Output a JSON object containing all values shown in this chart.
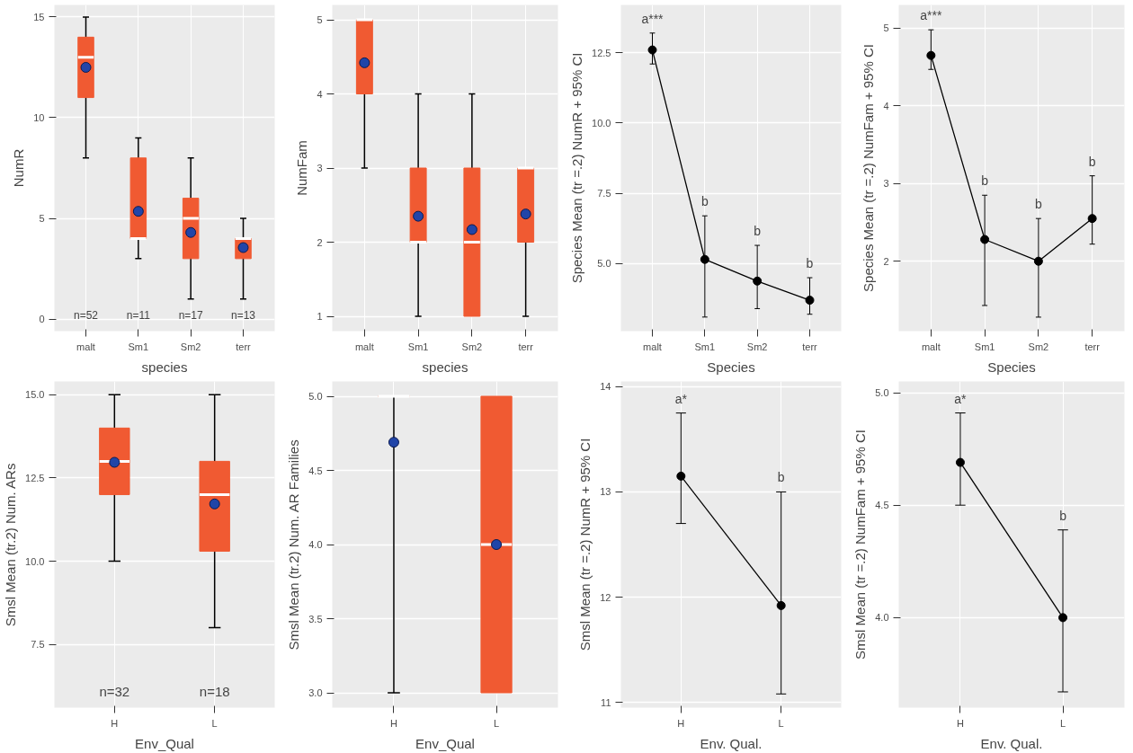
{
  "chart_data": [
    {
      "type": "box",
      "xlabel": "species",
      "ylabel": "NumR",
      "categories": [
        "malt",
        "Sm1",
        "Sm2",
        "terr"
      ],
      "ylim": [
        -0.6,
        15.6
      ],
      "yticks": [
        0,
        5,
        10,
        15
      ],
      "grid": true,
      "series": [
        {
          "color": "#f05a32",
          "boxes": [
            {
              "low": 8,
              "q1": 11,
              "median": 13,
              "q3": 14,
              "high": 15,
              "mean": 12.5
            },
            {
              "low": 3,
              "q1": 4,
              "median": 4,
              "q3": 8,
              "high": 9,
              "mean": 5.35
            },
            {
              "low": 1,
              "q1": 3,
              "median": 5,
              "q3": 6,
              "high": 8,
              "mean": 4.3
            },
            {
              "low": 1,
              "q1": 3,
              "median": 4,
              "q3": 4,
              "high": 5,
              "mean": 3.55
            }
          ]
        }
      ],
      "annotations": [
        "n=52",
        "n=11",
        "n=17",
        "n=13"
      ]
    },
    {
      "type": "box",
      "xlabel": "species",
      "ylabel": "NumFam",
      "categories": [
        "malt",
        "Sm1",
        "Sm2",
        "terr"
      ],
      "ylim": [
        0.8,
        5.2
      ],
      "yticks": [
        1,
        2,
        3,
        4,
        5
      ],
      "grid": true,
      "series": [
        {
          "color": "#f05a32",
          "boxes": [
            {
              "low": 3,
              "q1": 4,
              "median": 5,
              "q3": 5,
              "high": 5,
              "mean": 4.42
            },
            {
              "low": 1,
              "q1": 2,
              "median": 2,
              "q3": 3,
              "high": 4,
              "mean": 2.35
            },
            {
              "low": 1,
              "q1": 1,
              "median": 2,
              "q3": 3,
              "high": 4,
              "mean": 2.17
            },
            {
              "low": 1,
              "q1": 2,
              "median": 3,
              "q3": 3,
              "high": 3,
              "mean": 2.38
            }
          ]
        }
      ]
    },
    {
      "type": "line",
      "xlabel": "Species",
      "ylabel": "Species Mean (tr =.2) NumR + 95% CI",
      "categories": [
        "malt",
        "Sm1",
        "Sm2",
        "terr"
      ],
      "ylim": [
        2.6,
        14.2
      ],
      "yticks": [
        {
          "value": 5,
          "label": "5.0"
        },
        {
          "value": 7.5,
          "label": "7.5"
        },
        {
          "value": 10,
          "label": "10.0"
        },
        {
          "value": 12.5,
          "label": "12.5"
        }
      ],
      "grid": true,
      "marker": "circle",
      "series": [
        {
          "color": "#000000",
          "values": [
            12.6,
            5.15,
            4.38,
            3.7
          ],
          "errors": [
            [
              12.1,
              13.2
            ],
            [
              3.1,
              6.7
            ],
            [
              3.4,
              5.65
            ],
            [
              3.2,
              4.5
            ]
          ]
        }
      ],
      "annotations": [
        {
          "text": "a***",
          "x": "malt",
          "y": 13.2
        },
        {
          "text": "b",
          "x": "Sm1",
          "y": 6.7
        },
        {
          "text": "b",
          "x": "Sm2",
          "y": 5.65
        },
        {
          "text": "b",
          "x": "terr",
          "y": 4.5
        }
      ]
    },
    {
      "type": "line",
      "xlabel": "Species",
      "ylabel": "Species Mean (tr =.2) NumFam + 95% CI",
      "categories": [
        "malt",
        "Sm1",
        "Sm2",
        "terr"
      ],
      "ylim": [
        1.1,
        5.3
      ],
      "yticks": [
        2,
        3,
        4,
        5
      ],
      "grid": true,
      "marker": "circle",
      "series": [
        {
          "color": "#000000",
          "values": [
            4.65,
            2.28,
            2.0,
            2.55
          ],
          "errors": [
            [
              4.47,
              4.98
            ],
            [
              1.43,
              2.85
            ],
            [
              1.28,
              2.55
            ],
            [
              2.22,
              3.1
            ]
          ]
        }
      ],
      "annotations": [
        {
          "text": "a***",
          "x": "malt",
          "y": 4.98
        },
        {
          "text": "b",
          "x": "Sm1",
          "y": 2.85
        },
        {
          "text": "b",
          "x": "Sm2",
          "y": 2.55
        },
        {
          "text": "b",
          "x": "terr",
          "y": 3.1
        }
      ]
    },
    {
      "type": "box",
      "xlabel": "Env_Qual",
      "ylabel": "Smsl Mean (tr.2) Num. ARs",
      "categories": [
        "H",
        "L"
      ],
      "ylim": [
        5.6,
        15.4
      ],
      "yticks": [
        {
          "value": 7.5,
          "label": "7.5"
        },
        {
          "value": 10,
          "label": "10.0"
        },
        {
          "value": 12.5,
          "label": "12.5"
        },
        {
          "value": 15,
          "label": "15.0"
        }
      ],
      "grid": true,
      "series": [
        {
          "color": "#f05a32",
          "boxes": [
            {
              "low": 10,
              "q1": 12,
              "median": 13,
              "q3": 14,
              "high": 15,
              "mean": 12.97
            },
            {
              "low": 8,
              "q1": 10.3,
              "median": 12,
              "q3": 13,
              "high": 15,
              "mean": 11.72
            }
          ]
        }
      ],
      "annotations": [
        "n=32",
        "n=18"
      ]
    },
    {
      "type": "box",
      "xlabel": "Env_Qual",
      "ylabel": "Smsl Mean (tr.2) Num. AR Families",
      "categories": [
        "H",
        "L"
      ],
      "ylim": [
        2.9,
        5.1
      ],
      "yticks": [
        {
          "value": 3,
          "label": "3.0"
        },
        {
          "value": 3.5,
          "label": "3.5"
        },
        {
          "value": 4,
          "label": "4.0"
        },
        {
          "value": 4.5,
          "label": "4.5"
        },
        {
          "value": 5,
          "label": "5.0"
        }
      ],
      "grid": true,
      "series": [
        {
          "color": "#f05a32",
          "boxes": [
            {
              "low": 3,
              "q1": 5,
              "median": 5,
              "q3": 5,
              "high": 5,
              "mean": 4.69
            },
            {
              "low": 3,
              "q1": 3,
              "median": 4,
              "q3": 5,
              "high": 5,
              "mean": 4.0
            }
          ]
        }
      ]
    },
    {
      "type": "line",
      "xlabel": "Env. Qual.",
      "ylabel": "Smsl Mean (tr =.2) NumR + 95% CI",
      "categories": [
        "H",
        "L"
      ],
      "ylim": [
        10.95,
        14.05
      ],
      "yticks": [
        11,
        12,
        13,
        14
      ],
      "grid": true,
      "marker": "circle",
      "series": [
        {
          "color": "#000000",
          "values": [
            13.15,
            11.92
          ],
          "errors": [
            [
              12.7,
              13.75
            ],
            [
              11.08,
              13.0
            ]
          ]
        }
      ],
      "annotations": [
        {
          "text": "a*",
          "x": "H",
          "y": 13.75
        },
        {
          "text": "b",
          "x": "L",
          "y": 13.0
        }
      ]
    },
    {
      "type": "line",
      "xlabel": "Env. Qual.",
      "ylabel": "Smsl Mean (tr =.2) NumFam + 95% CI",
      "categories": [
        "H",
        "L"
      ],
      "ylim": [
        3.6,
        5.05
      ],
      "yticks": [
        {
          "value": 4,
          "label": "4.0"
        },
        {
          "value": 4.5,
          "label": "4.5"
        },
        {
          "value": 5,
          "label": "5.0"
        }
      ],
      "grid": true,
      "marker": "circle",
      "series": [
        {
          "color": "#000000",
          "values": [
            4.69,
            4.0
          ],
          "errors": [
            [
              4.5,
              4.91
            ],
            [
              3.67,
              4.39
            ]
          ]
        }
      ],
      "annotations": [
        {
          "text": "a*",
          "x": "H",
          "y": 4.91
        },
        {
          "text": "b",
          "x": "L",
          "y": 4.39
        }
      ]
    }
  ]
}
